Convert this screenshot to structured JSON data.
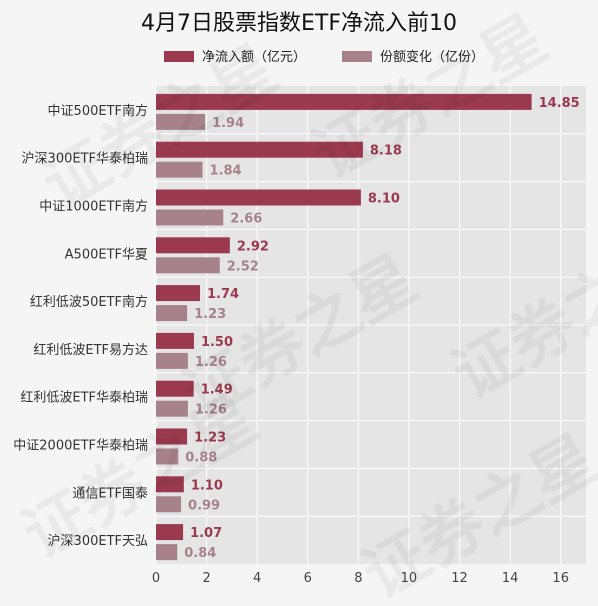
{
  "chart_data": {
    "type": "bar",
    "orientation": "horizontal",
    "title": "4月7日股票指数ETF净流入前10",
    "categories": [
      "中证500ETF南方",
      "沪深300ETF华泰柏瑞",
      "中证1000ETF南方",
      "A500ETF华夏",
      "红利低波50ETF南方",
      "红利低波ETF易方达",
      "红利低波ETF华泰柏瑞",
      "中证2000ETF华泰柏瑞",
      "通信ETF国泰",
      "沪深300ETF天弘"
    ],
    "series": [
      {
        "name": "净流入额（亿元）",
        "color": "#9b3a4e",
        "values": [
          14.85,
          8.18,
          8.1,
          2.92,
          1.74,
          1.5,
          1.49,
          1.23,
          1.1,
          1.07
        ],
        "labels": [
          "14.85",
          "8.18",
          "8.10",
          "2.92",
          "1.74",
          "1.50",
          "1.49",
          "1.23",
          "1.10",
          "1.07"
        ]
      },
      {
        "name": "份额变化（亿份）",
        "color": "#a7828d",
        "values": [
          1.94,
          1.84,
          2.66,
          2.52,
          1.23,
          1.26,
          1.26,
          0.88,
          0.99,
          0.84
        ],
        "labels": [
          "1.94",
          "1.84",
          "2.66",
          "2.52",
          "1.23",
          "1.26",
          "1.26",
          "0.88",
          "0.99",
          "0.84"
        ]
      }
    ],
    "x_ticks": [
      0,
      2,
      4,
      6,
      8,
      10,
      12,
      14,
      16
    ],
    "xlim": [
      0,
      17
    ],
    "grid": true,
    "legend_position": "top-center",
    "background": "#e5e5e5",
    "watermark_text": "证券之星"
  }
}
